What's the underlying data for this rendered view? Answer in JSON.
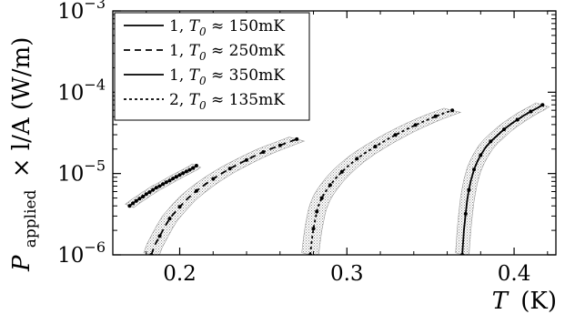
{
  "chart_data": {
    "type": "line",
    "title": "",
    "xlabel": {
      "symbol": "T",
      "unit": "(K)"
    },
    "ylabel": {
      "symbol": "P",
      "subscript": "applied",
      "rest": "× l/A (W/m)"
    },
    "xlim": [
      0.16,
      0.425
    ],
    "ylim": [
      1e-06,
      0.001
    ],
    "yscale": "log",
    "grid": false,
    "legend_position": "top-left",
    "x_ticks": [
      {
        "value": 0.2,
        "label": "0.2"
      },
      {
        "value": 0.3,
        "label": "0.3"
      },
      {
        "value": 0.4,
        "label": "0.4"
      }
    ],
    "y_ticks": [
      {
        "value": 1e-06,
        "base": "10",
        "exp": "−6"
      },
      {
        "value": 1e-05,
        "base": "10",
        "exp": "−5"
      },
      {
        "value": 0.0001,
        "base": "10",
        "exp": "−4"
      },
      {
        "value": 0.001,
        "base": "10",
        "exp": "−3"
      }
    ],
    "series": [
      {
        "legend": {
          "prefix": "1, ",
          "var": "T",
          "sub": "0",
          "suffix": " ≈ 150mK"
        },
        "dash": "",
        "marker_every": 1,
        "band_halfwidth": 0.0025,
        "band_rel": 0.05,
        "x": [
          0.17,
          0.172,
          0.174,
          0.176,
          0.178,
          0.18,
          0.182,
          0.184,
          0.186,
          0.188,
          0.19,
          0.192,
          0.194,
          0.196,
          0.198,
          0.2,
          0.202,
          0.204,
          0.206,
          0.208,
          0.21
        ],
        "y": [
          4e-06,
          4.3e-06,
          4.6e-06,
          4.9e-06,
          5.2e-06,
          5.6e-06,
          5.9e-06,
          6.3e-06,
          6.7e-06,
          7e-06,
          7.4e-06,
          7.8e-06,
          8.2e-06,
          8.7e-06,
          9.1e-06,
          9.6e-06,
          1.01e-05,
          1.06e-05,
          1.11e-05,
          1.17e-05,
          1.25e-05
        ]
      },
      {
        "legend": {
          "prefix": "1, ",
          "var": "T",
          "sub": "0",
          "suffix": " ≈ 250mK"
        },
        "dash": "7,5",
        "marker_every": 2,
        "band_halfwidth": 0.0045,
        "band_rel": 0.06,
        "x": [
          0.183,
          0.185,
          0.188,
          0.191,
          0.194,
          0.197,
          0.2,
          0.205,
          0.21,
          0.215,
          0.22,
          0.225,
          0.23,
          0.235,
          0.24,
          0.245,
          0.25,
          0.255,
          0.26,
          0.265,
          0.27
        ],
        "y": [
          1e-06,
          1.3e-06,
          1.7e-06,
          2.2e-06,
          2.8e-06,
          3.3e-06,
          3.9e-06,
          5e-06,
          6.1e-06,
          7.3e-06,
          8.6e-06,
          1e-05,
          1.15e-05,
          1.3e-05,
          1.47e-05,
          1.65e-05,
          1.84e-05,
          2.03e-05,
          2.22e-05,
          2.43e-05,
          2.65e-05
        ]
      },
      {
        "legend": {
          "prefix": "1, ",
          "var": "T",
          "sub": "0",
          "suffix": " ≈ 350mK"
        },
        "dash": "",
        "marker_every": 2,
        "band_halfwidth": 0.004,
        "band_rel": 0.06,
        "x": [
          0.369,
          0.37,
          0.371,
          0.372,
          0.373,
          0.374,
          0.376,
          0.378,
          0.38,
          0.383,
          0.386,
          0.39,
          0.394,
          0.398,
          0.402,
          0.406,
          0.41,
          0.414,
          0.417
        ],
        "y": [
          1e-06,
          2e-06,
          3.2e-06,
          4.8e-06,
          6.3e-06,
          8e-06,
          1.12e-05,
          1.4e-05,
          1.68e-05,
          2.1e-05,
          2.48e-05,
          2.95e-05,
          3.5e-05,
          4.05e-05,
          4.6e-05,
          5.2e-05,
          5.8e-05,
          6.4e-05,
          7e-05
        ]
      },
      {
        "legend": {
          "prefix": "2, ",
          "var": "T",
          "sub": "0",
          "suffix": " ≈ 135mK"
        },
        "dash": "3,3",
        "marker_every": 2,
        "band_halfwidth": 0.005,
        "band_rel": 0.06,
        "x": [
          0.278,
          0.279,
          0.28,
          0.281,
          0.282,
          0.283,
          0.285,
          0.287,
          0.29,
          0.293,
          0.297,
          0.301,
          0.306,
          0.311,
          0.317,
          0.323,
          0.329,
          0.335,
          0.341,
          0.347,
          0.353,
          0.359,
          0.363
        ],
        "y": [
          1e-06,
          1.5e-06,
          2.1e-06,
          2.7e-06,
          3.4e-06,
          4e-06,
          5e-06,
          5.9e-06,
          7.2e-06,
          8.6e-06,
          1.05e-05,
          1.25e-05,
          1.52e-05,
          1.8e-05,
          2.15e-05,
          2.55e-05,
          2.98e-05,
          3.45e-05,
          3.95e-05,
          4.48e-05,
          5.05e-05,
          5.6e-05,
          6e-05
        ]
      }
    ]
  }
}
